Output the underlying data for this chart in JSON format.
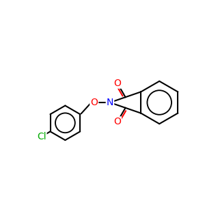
{
  "bg_color": "#ffffff",
  "bond_color": "#000000",
  "o_color": "#ff0000",
  "n_color": "#0000ff",
  "cl_color": "#00aa00",
  "line_width": 1.5,
  "figsize": [
    3.0,
    3.0
  ],
  "dpi": 100,
  "xlim": [
    0,
    10
  ],
  "ylim": [
    0,
    10
  ]
}
